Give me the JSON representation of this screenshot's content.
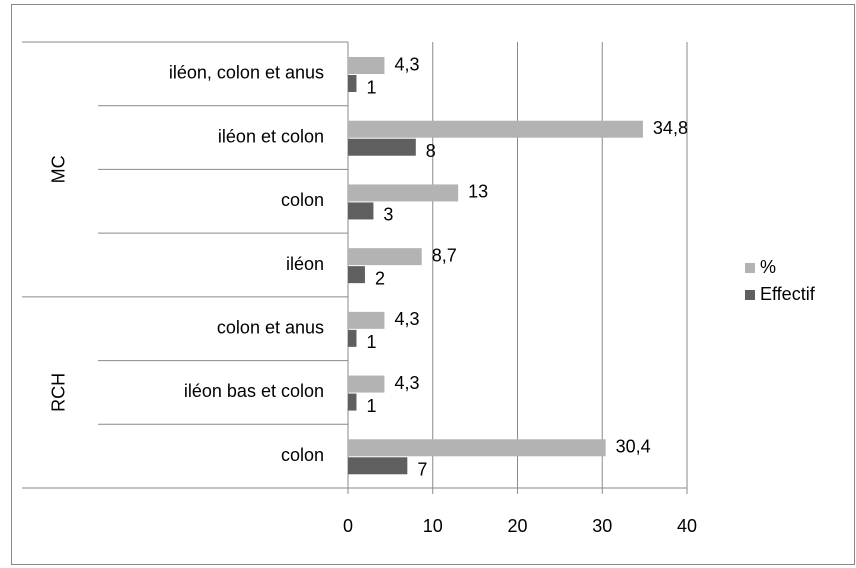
{
  "chart_data": {
    "type": "bar",
    "orientation": "horizontal",
    "category_groups": [
      {
        "name": "MC",
        "categories": [
          "iléon, colon et anus",
          "iléon et colon",
          "colon",
          "iléon"
        ]
      },
      {
        "name": "RCH",
        "categories": [
          "colon et anus",
          "iléon bas et colon",
          "colon"
        ]
      }
    ],
    "series": [
      {
        "name": "%",
        "color": "#b3b3b3",
        "values": [
          4.3,
          34.8,
          13,
          8.7,
          4.3,
          4.3,
          30.4
        ],
        "value_labels": [
          "4,3",
          "34,8",
          "13",
          "8,7",
          "4,3",
          "4,3",
          "30,4"
        ]
      },
      {
        "name": "Effectif",
        "color": "#5f5f5f",
        "values": [
          1,
          8,
          3,
          2,
          1,
          1,
          7
        ]
      }
    ],
    "xlim": [
      0,
      40
    ],
    "xticks": [
      0,
      10,
      20,
      30,
      40
    ],
    "grid": true,
    "legend": "right"
  }
}
